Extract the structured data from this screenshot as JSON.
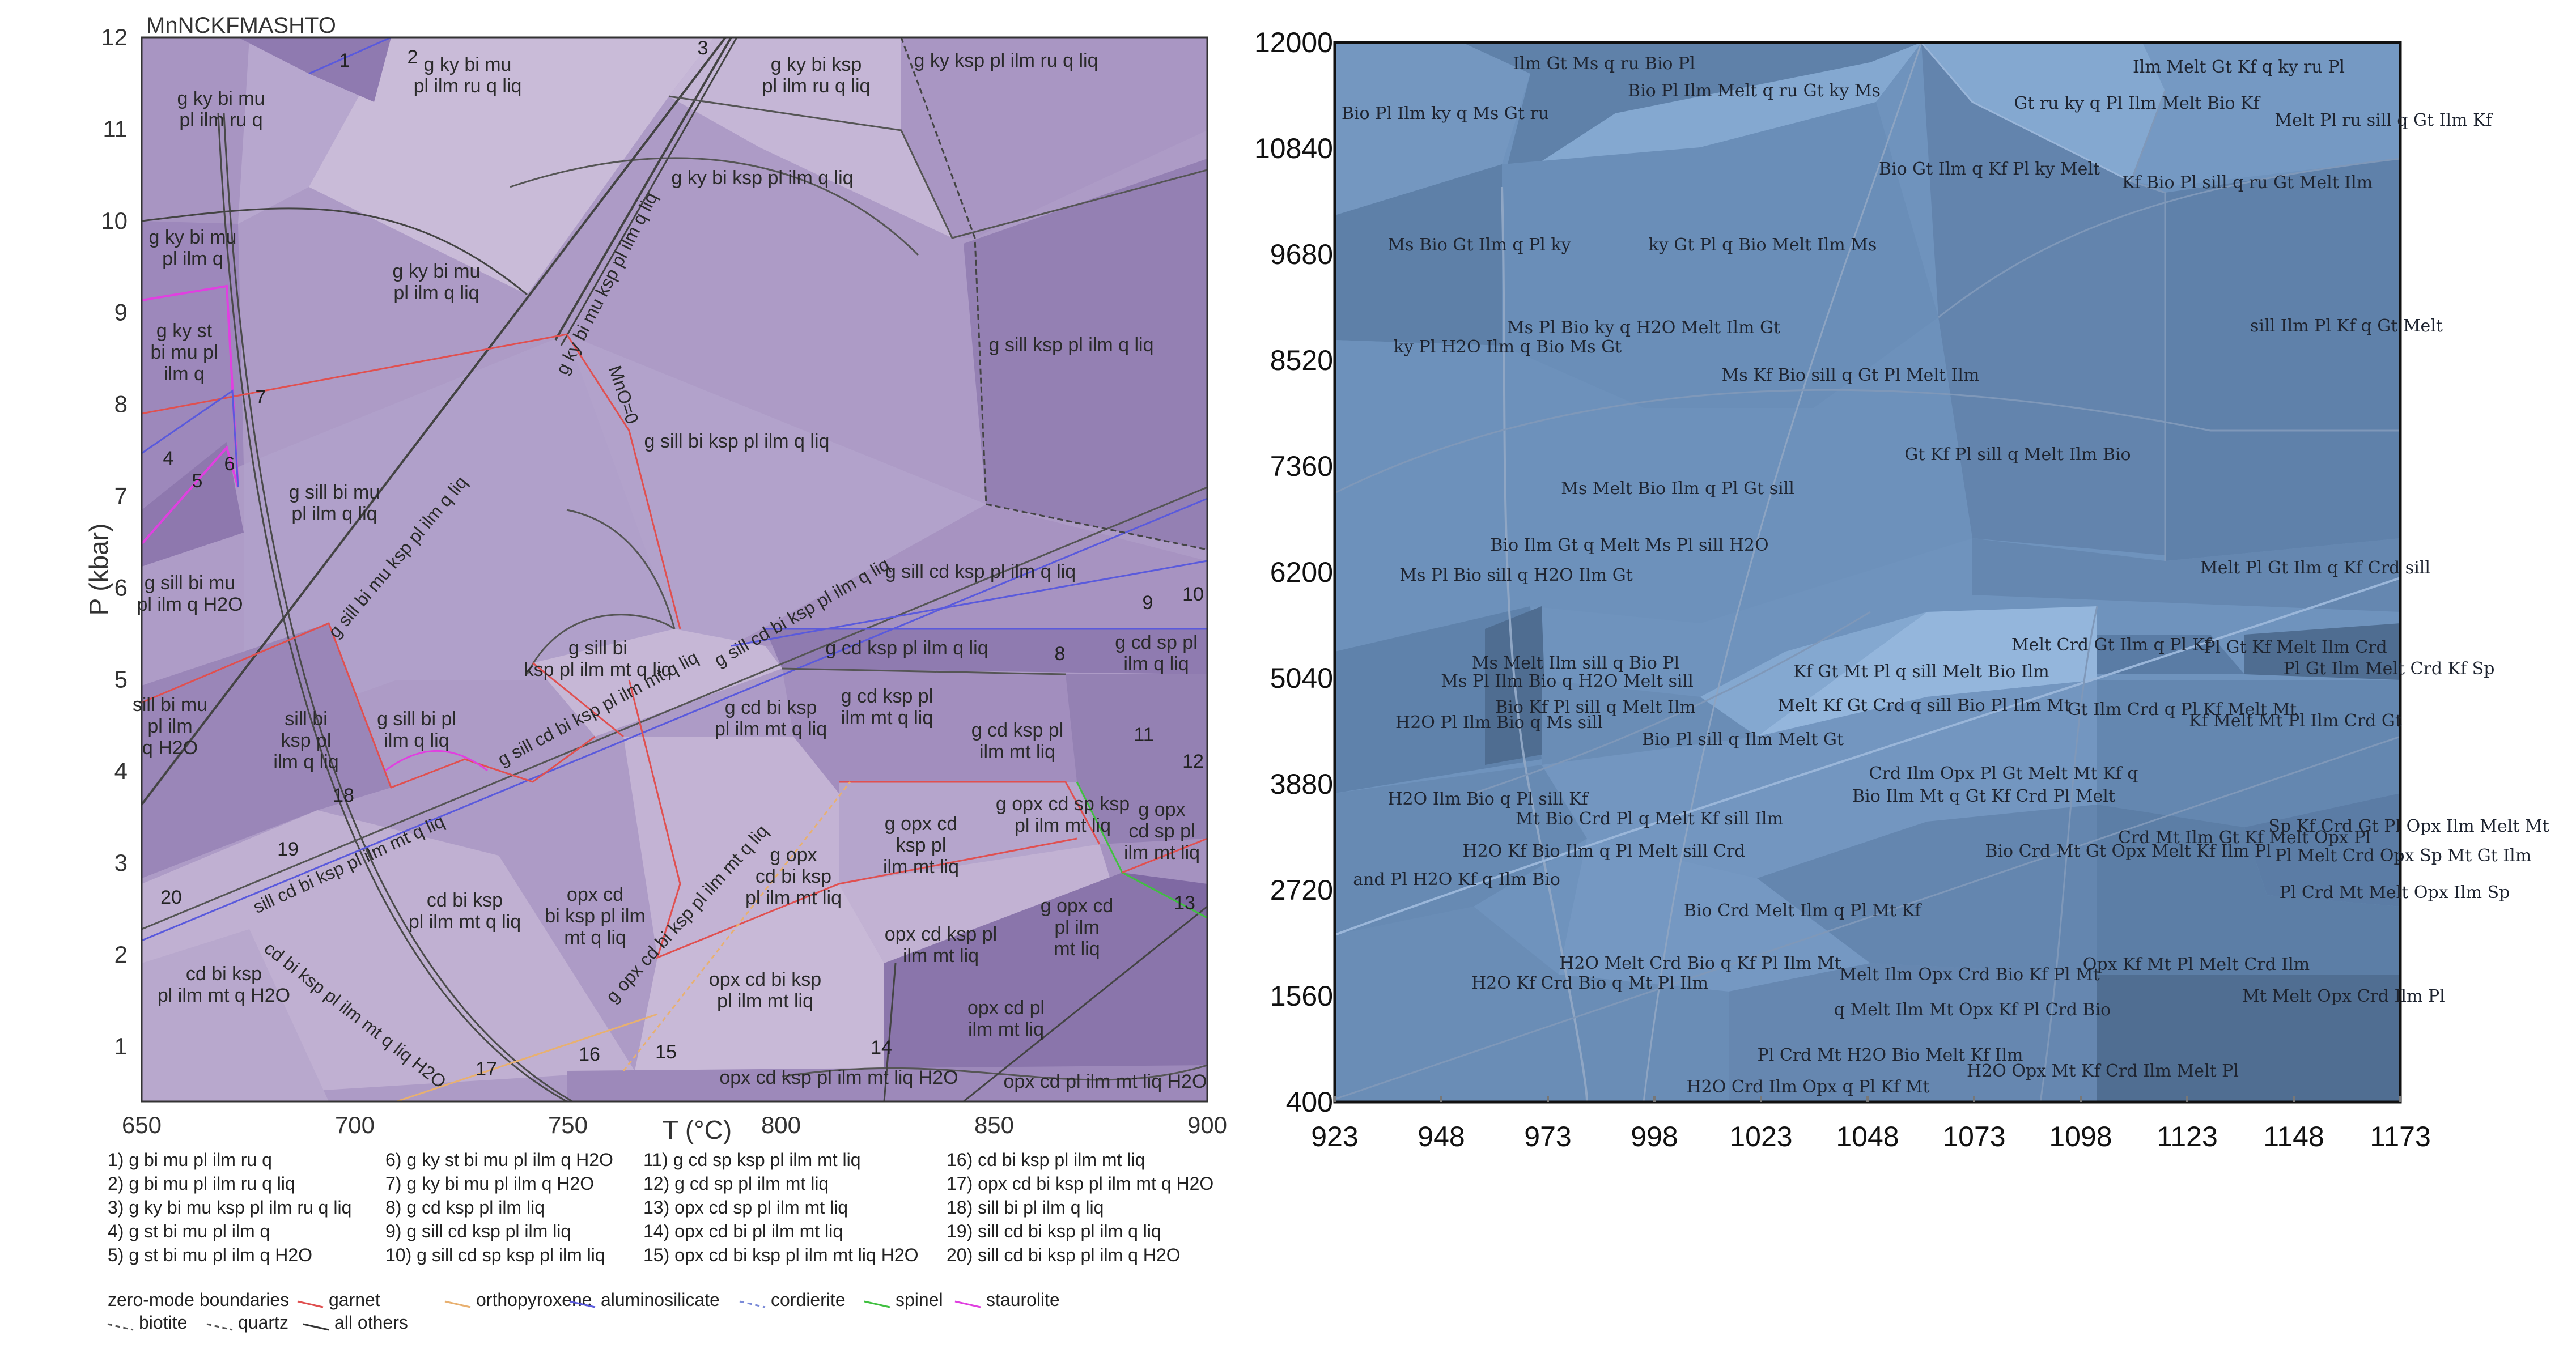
{
  "left": {
    "title": "MnNCKFMASHTO",
    "x_axis": {
      "label": "T (°C)",
      "ticks": [
        "650",
        "700",
        "750",
        "800",
        "850",
        "900"
      ]
    },
    "y_axis": {
      "label": "P (kbar)",
      "ticks": [
        "1",
        "2",
        "3",
        "4",
        "5",
        "6",
        "7",
        "8",
        "9",
        "10",
        "11",
        "12"
      ]
    },
    "fields": [
      {
        "n": "f1",
        "text": [
          "g ky bi mu",
          "pl ilm ru q"
        ]
      },
      {
        "n": "f2",
        "text": [
          "g ky bi mu",
          "pl ilm ru q liq"
        ]
      },
      {
        "n": "f3",
        "text": [
          "g ky bi ksp",
          "pl ilm ru q liq"
        ]
      },
      {
        "n": "f4",
        "text": [
          "g ky ksp pl ilm ru q liq"
        ]
      },
      {
        "n": "f5",
        "text": [
          "g ky bi mu",
          "pl ilm q"
        ]
      },
      {
        "n": "f6",
        "text": [
          "g ky bi mu",
          "pl ilm q liq"
        ]
      },
      {
        "n": "f7",
        "text": [
          "g ky bi ksp pl ilm q liq"
        ]
      },
      {
        "n": "f8",
        "text": [
          "g sill ksp pl ilm q liq"
        ]
      },
      {
        "n": "f9",
        "text": [
          "g ky st",
          "bi mu pl",
          "ilm q"
        ]
      },
      {
        "n": "f10",
        "text": [
          "g sill bi mu",
          "pl ilm q liq"
        ]
      },
      {
        "n": "f11",
        "text": [
          "g sill bi ksp pl ilm q liq"
        ]
      },
      {
        "n": "f12",
        "text": [
          "g sill bi mu",
          "pl ilm q H2O"
        ]
      },
      {
        "n": "f13",
        "text": [
          "g sill cd ksp pl ilm q liq"
        ]
      },
      {
        "n": "f14",
        "text": [
          "sill bi mu",
          "pl ilm",
          "q H2O"
        ]
      },
      {
        "n": "f15",
        "text": [
          "sill bi",
          "ksp pl",
          "ilm q liq"
        ]
      },
      {
        "n": "f16",
        "text": [
          "g sill bi pl",
          "ilm q liq"
        ]
      },
      {
        "n": "f17",
        "text": [
          "g sill bi",
          "ksp pl ilm mt q liq"
        ]
      },
      {
        "n": "f18",
        "text": [
          "g cd bi ksp",
          "pl ilm mt q liq"
        ]
      },
      {
        "n": "f19",
        "text": [
          "g cd ksp pl",
          "ilm mt q liq"
        ]
      },
      {
        "n": "f20",
        "text": [
          "g cd ksp pl ilm q liq"
        ]
      },
      {
        "n": "f21",
        "text": [
          "g cd ksp pl",
          "ilm mt liq"
        ]
      },
      {
        "n": "f22",
        "text": [
          "g cd sp pl",
          "ilm q liq"
        ]
      },
      {
        "n": "f23",
        "text": [
          "g opx cd",
          "ksp pl",
          "ilm mt liq"
        ]
      },
      {
        "n": "f24",
        "text": [
          "g opx cd sp ksp",
          "pl ilm mt liq"
        ]
      },
      {
        "n": "f25",
        "text": [
          "g opx",
          "cd sp pl",
          "ilm mt liq"
        ]
      },
      {
        "n": "f26",
        "text": [
          "g opx",
          "cd bi ksp",
          "pl ilm mt liq"
        ]
      },
      {
        "n": "f27",
        "text": [
          "cd bi ksp",
          "pl ilm mt q liq"
        ]
      },
      {
        "n": "f28",
        "text": [
          "opx cd",
          "bi ksp pl ilm",
          "mt q liq"
        ]
      },
      {
        "n": "f29",
        "text": [
          "opx cd bi ksp",
          "pl ilm mt liq"
        ]
      },
      {
        "n": "f30",
        "text": [
          "opx cd ksp pl",
          "ilm mt liq"
        ]
      },
      {
        "n": "f31",
        "text": [
          "g opx cd",
          "pl ilm",
          "mt liq"
        ]
      },
      {
        "n": "f32",
        "text": [
          "opx cd pl",
          "ilm mt liq"
        ]
      },
      {
        "n": "f33",
        "text": [
          "cd bi ksp",
          "pl ilm mt q H2O"
        ]
      },
      {
        "n": "f34",
        "text": [
          "opx cd ksp pl ilm mt liq H2O"
        ]
      },
      {
        "n": "f35",
        "text": [
          "opx cd pl ilm mt liq H2O"
        ]
      }
    ],
    "line_labels": [
      {
        "n": "l1",
        "text": "g ky bi mu ksp pl ilm q liq"
      },
      {
        "n": "l2",
        "text": "g sill bi mu ksp pl ilm q liq"
      },
      {
        "n": "l3",
        "text": "g sill cd bi ksp pl ilm q liq"
      },
      {
        "n": "l4",
        "text": "g sill cd bi ksp pl ilm mt q liq"
      },
      {
        "n": "l5",
        "text": "sill cd bi ksp pl ilm mt q liq"
      },
      {
        "n": "l6",
        "text": "cd bi ksp pl ilm mt q liq H2O"
      },
      {
        "n": "l7",
        "text": "g opx cd bi ksp pl ilm mt q liq"
      },
      {
        "n": "l8",
        "text": "MnO=0"
      }
    ],
    "numbers": [
      "1",
      "2",
      "3",
      "4",
      "5",
      "6",
      "7",
      "8",
      "9",
      "10",
      "11",
      "12",
      "13",
      "14",
      "15",
      "16",
      "17",
      "18",
      "19",
      "20"
    ],
    "legend": [
      "1) g bi mu pl ilm ru q",
      "2) g bi mu pl ilm ru q liq",
      "3) g ky bi mu ksp pl ilm ru q liq",
      "4) g st  bi mu pl ilm q",
      "5) g st  bi mu pl ilm q H2O",
      "6) g ky st  bi mu pl ilm q H2O",
      "7) g ky  bi mu pl ilm q H2O",
      "8) g cd ksp pl ilm liq",
      "9) g sill cd ksp pl ilm liq",
      "10) g sill cd sp ksp pl ilm liq",
      "11) g cd sp ksp pl ilm mt liq",
      "12) g cd sp pl ilm mt liq",
      "13) opx cd sp pl ilm mt liq",
      "14) opx cd bi pl ilm mt liq",
      "15) opx cd bi ksp pl ilm mt liq H2O",
      "16) cd bi ksp pl ilm mt liq",
      "17) opx cd bi ksp pl ilm mt q H2O",
      "18) sill bi pl ilm q liq",
      "19) sill cd bi ksp pl ilm q liq",
      "20) sill cd bi ksp pl ilm q H2O"
    ],
    "boundary_legend": {
      "title": "zero-mode boundaries",
      "items": [
        {
          "label": "garnet",
          "color": "#e05050"
        },
        {
          "label": "orthopyroxene",
          "color": "#e8b070"
        },
        {
          "label": "aluminosilicate",
          "color": "#5a5adc"
        },
        {
          "label": "cordierite",
          "color": "#7a8ad8"
        },
        {
          "label": "spinel",
          "color": "#40c040"
        },
        {
          "label": "staurolite",
          "color": "#e040e0"
        },
        {
          "label": "biotite",
          "color": "#555555"
        },
        {
          "label": "quartz",
          "color": "#555555"
        },
        {
          "label": "all others",
          "color": "#333333"
        }
      ]
    },
    "colors": {
      "light": "#c9bbd8",
      "mid": "#ad9bc6",
      "dark": "#9480b3",
      "darker": "#7f69a3"
    }
  },
  "right": {
    "x_ticks": [
      "923",
      "948",
      "973",
      "998",
      "1023",
      "1048",
      "1073",
      "1098",
      "1123",
      "1148",
      "1173"
    ],
    "y_ticks": [
      "12000",
      "10840",
      "9680",
      "8520",
      "7360",
      "6200",
      "5040",
      "3880",
      "2720",
      "1560",
      "400"
    ],
    "fields": [
      {
        "n": "r1",
        "text": "Ilm Gt Ms q ru Bio Pl"
      },
      {
        "n": "r2",
        "text": "Bio Pl Ilm Melt q ru Gt ky Ms"
      },
      {
        "n": "r3",
        "text": "Bio Pl Ilm ky q Ms Gt ru"
      },
      {
        "n": "r4",
        "text": "Ilm Melt Gt Kf q ky ru Pl"
      },
      {
        "n": "r5",
        "text": "Gt ru ky q Pl Ilm Melt Bio Kf"
      },
      {
        "n": "r6",
        "text": "Melt Pl ru sill q Gt Ilm Kf"
      },
      {
        "n": "r7",
        "text": "Bio Gt Ilm q Kf Pl ky Melt"
      },
      {
        "n": "r8",
        "text": "Kf Bio Pl sill q ru Gt Melt Ilm"
      },
      {
        "n": "r9",
        "text": "Ms Bio Gt Ilm q Pl ky"
      },
      {
        "n": "r10",
        "text": "ky Gt Pl q Bio Melt Ilm Ms"
      },
      {
        "n": "r11",
        "text": "Ms Pl Bio ky q H2O Melt Ilm Gt"
      },
      {
        "n": "r12",
        "text": "ky Pl H2O Ilm q Bio Ms Gt"
      },
      {
        "n": "r13",
        "text": "sill Ilm Pl Kf q Gt Melt"
      },
      {
        "n": "r14",
        "text": "Ms Kf Bio sill q Gt Pl Melt Ilm"
      },
      {
        "n": "r15",
        "text": "Gt Kf Pl sill q Melt Ilm Bio"
      },
      {
        "n": "r16",
        "text": "Ms Melt Bio Ilm q Pl Gt sill"
      },
      {
        "n": "r17",
        "text": "Bio Ilm Gt q Melt Ms Pl sill H2O"
      },
      {
        "n": "r18",
        "text": "Ms Pl Bio sill q H2O Ilm Gt"
      },
      {
        "n": "r19",
        "text": "Melt Pl Gt Ilm q Kf Crd sill"
      },
      {
        "n": "r20",
        "text": "Melt Crd Gt Ilm q Pl Kf"
      },
      {
        "n": "r21",
        "text": "Pl Gt Kf Melt Ilm Crd"
      },
      {
        "n": "r22",
        "text": "Pl Gt Ilm Melt Crd Kf Sp"
      },
      {
        "n": "r23",
        "text": "Ms Melt Ilm sill q Bio Pl"
      },
      {
        "n": "r24",
        "text": "Ms Pl Ilm Bio q H2O Melt sill"
      },
      {
        "n": "r25",
        "text": "Bio Kf Pl sill q Melt Ilm"
      },
      {
        "n": "r26",
        "text": "H2O Pl Ilm Bio q Ms sill"
      },
      {
        "n": "r27",
        "text": "Kf Gt Mt Pl q sill Melt Bio Ilm"
      },
      {
        "n": "r28",
        "text": "Melt Kf Gt Crd q sill Bio Pl Ilm Mt"
      },
      {
        "n": "r29",
        "text": "Gt Ilm Crd q Pl Kf Melt Mt"
      },
      {
        "n": "r30",
        "text": "Kf Melt Mt Pl Ilm Crd Gt"
      },
      {
        "n": "r31",
        "text": "Bio Pl sill q Ilm Melt Gt"
      },
      {
        "n": "r32",
        "text": "Crd Ilm Opx Pl Gt Melt Mt Kf q"
      },
      {
        "n": "r33",
        "text": "H2O Ilm Bio q Pl sill Kf"
      },
      {
        "n": "r34",
        "text": "Bio Ilm Mt q Gt Kf Crd Pl Melt"
      },
      {
        "n": "r35",
        "text": "Mt Bio Crd Pl q Melt Kf sill Ilm"
      },
      {
        "n": "r36",
        "text": "Sp Kf Crd Gt Pl Opx Ilm Melt Mt"
      },
      {
        "n": "r37",
        "text": "Crd Mt Ilm Gt Kf Melt Opx Pl"
      },
      {
        "n": "r38",
        "text": "Pl Melt Crd Opx Sp Mt Gt Ilm"
      },
      {
        "n": "r39",
        "text": "H2O Kf Bio Ilm q Pl Melt sill Crd"
      },
      {
        "n": "r40",
        "text": "Bio Crd Mt Gt Opx Melt Kf Ilm Pl"
      },
      {
        "n": "r41",
        "text": "and Pl H2O Kf q Ilm Bio"
      },
      {
        "n": "r42",
        "text": "Pl Crd Mt Melt Opx Ilm Sp"
      },
      {
        "n": "r43",
        "text": "Bio Crd Melt Ilm q Pl Mt Kf"
      },
      {
        "n": "r44",
        "text": "H2O Melt Crd Bio q Kf Pl Ilm Mt"
      },
      {
        "n": "r45",
        "text": "Opx Kf Mt Pl Melt Crd Ilm"
      },
      {
        "n": "r46",
        "text": "H2O Kf Crd Bio q Mt Pl Ilm"
      },
      {
        "n": "r47",
        "text": "Melt Ilm Opx Crd Bio Kf Pl Mt"
      },
      {
        "n": "r48",
        "text": "Mt Melt Opx Crd Ilm Pl"
      },
      {
        "n": "r49",
        "text": "q Melt Ilm Mt Opx Kf Pl Crd Bio"
      },
      {
        "n": "r50",
        "text": "Pl Crd Mt H2O Bio Melt Kf Ilm"
      },
      {
        "n": "r51",
        "text": "H2O Opx Mt Kf Crd Ilm Melt Pl"
      },
      {
        "n": "r52",
        "text": "H2O Crd Ilm Opx q Pl Kf Mt"
      }
    ],
    "colors": {
      "base": "#6f93bd",
      "light": "#84a8d0",
      "dark": "#5c7ea6",
      "darker": "#4f6d91",
      "frame": "#111111"
    }
  }
}
